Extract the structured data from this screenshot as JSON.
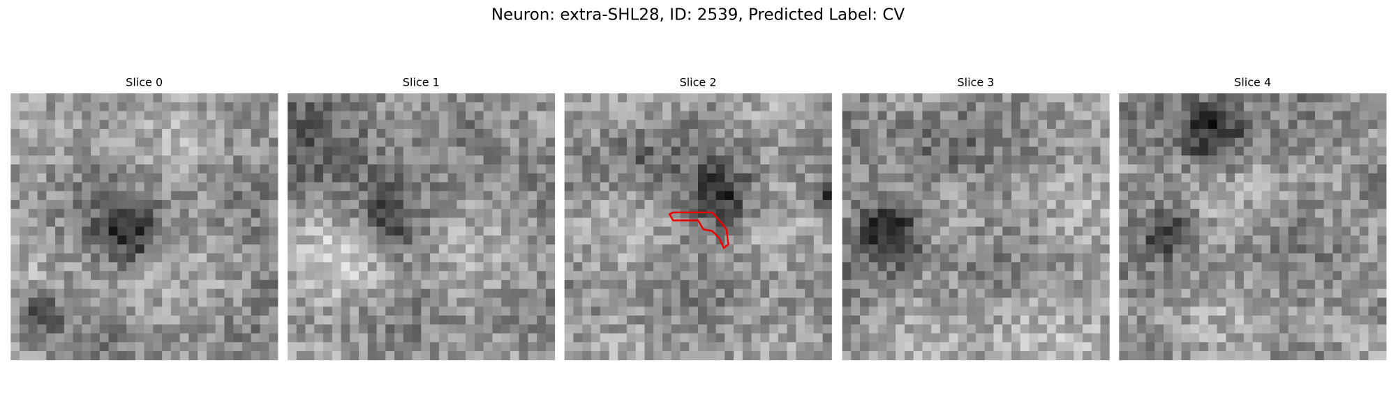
{
  "title": "Neuron: extra-SHL28, ID: 2539, Predicted Label: CV",
  "panels": [
    {
      "title": "Slice 0"
    },
    {
      "title": "Slice 1"
    },
    {
      "title": "Slice 2"
    },
    {
      "title": "Slice 3"
    },
    {
      "title": "Slice 4"
    }
  ]
}
